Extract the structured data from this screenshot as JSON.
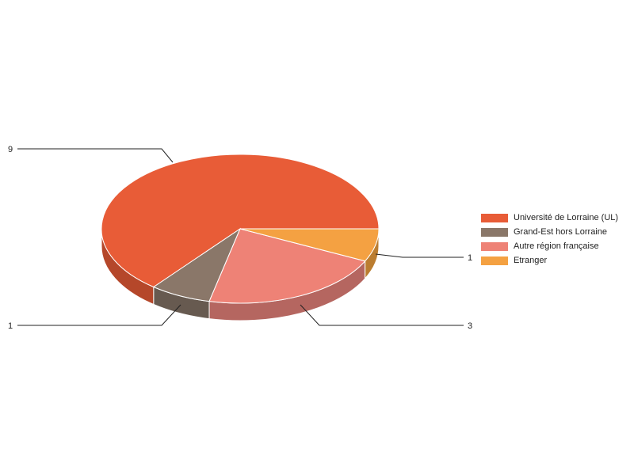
{
  "chart_data": {
    "type": "pie",
    "style": "3d",
    "categories": [
      "Université de Lorraine (UL)",
      "Grand-Est hors Lorraine",
      "Autre région française",
      "Etranger"
    ],
    "values": [
      9,
      1,
      3,
      1
    ],
    "data_labels": [
      "9",
      "1",
      "3",
      "1"
    ],
    "colors": [
      "#e85c37",
      "#8a7769",
      "#ee8276",
      "#f4a142"
    ],
    "side_colors": [
      "#b5472a",
      "#675a50",
      "#b56660",
      "#bb7d30"
    ],
    "legend_position": "right"
  }
}
